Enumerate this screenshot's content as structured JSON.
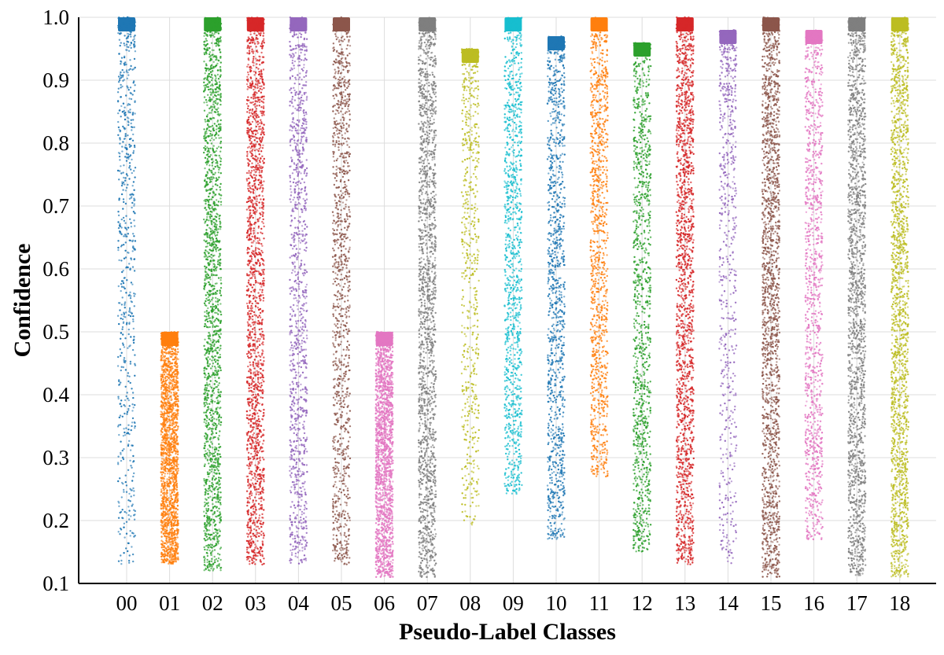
{
  "chart_data": {
    "type": "scatter",
    "title": "",
    "xlabel": "Pseudo-Label Classes",
    "ylabel": "Confidence",
    "categories": [
      "00",
      "01",
      "02",
      "03",
      "04",
      "05",
      "06",
      "07",
      "08",
      "09",
      "10",
      "11",
      "12",
      "13",
      "14",
      "15",
      "16",
      "17",
      "18"
    ],
    "yticks": [
      "0.1",
      "0.2",
      "0.3",
      "0.4",
      "0.5",
      "0.6",
      "0.7",
      "0.8",
      "0.9",
      "1.0"
    ],
    "ylim": [
      0.1,
      1.0
    ],
    "grid": true,
    "legend": "none",
    "series": [
      {
        "category": "00",
        "color": "#1f77b4",
        "min": 0.13,
        "max": 1.0,
        "density": "sparse"
      },
      {
        "category": "01",
        "color": "#ff7f0e",
        "min": 0.13,
        "max": 0.5,
        "density": "dense"
      },
      {
        "category": "02",
        "color": "#2ca02c",
        "min": 0.12,
        "max": 1.0,
        "density": "dense"
      },
      {
        "category": "03",
        "color": "#d62728",
        "min": 0.13,
        "max": 1.0,
        "density": "dense"
      },
      {
        "category": "04",
        "color": "#9467bd",
        "min": 0.13,
        "max": 1.0,
        "density": "medium"
      },
      {
        "category": "05",
        "color": "#8c564b",
        "min": 0.13,
        "max": 1.0,
        "density": "medium"
      },
      {
        "category": "06",
        "color": "#e377c2",
        "min": 0.11,
        "max": 0.5,
        "density": "dense"
      },
      {
        "category": "07",
        "color": "#7f7f7f",
        "min": 0.11,
        "max": 1.0,
        "density": "dense"
      },
      {
        "category": "08",
        "color": "#bcbd22",
        "min": 0.19,
        "max": 0.95,
        "density": "sparse"
      },
      {
        "category": "09",
        "color": "#17becf",
        "min": 0.24,
        "max": 1.0,
        "density": "medium"
      },
      {
        "category": "10",
        "color": "#1f77b4",
        "min": 0.17,
        "max": 0.97,
        "density": "medium"
      },
      {
        "category": "11",
        "color": "#ff7f0e",
        "min": 0.27,
        "max": 1.0,
        "density": "medium"
      },
      {
        "category": "12",
        "color": "#2ca02c",
        "min": 0.15,
        "max": 0.96,
        "density": "medium"
      },
      {
        "category": "13",
        "color": "#d62728",
        "min": 0.13,
        "max": 1.0,
        "density": "dense"
      },
      {
        "category": "14",
        "color": "#9467bd",
        "min": 0.13,
        "max": 0.98,
        "density": "sparse"
      },
      {
        "category": "15",
        "color": "#8c564b",
        "min": 0.11,
        "max": 1.0,
        "density": "dense"
      },
      {
        "category": "16",
        "color": "#e377c2",
        "min": 0.17,
        "max": 0.98,
        "density": "medium"
      },
      {
        "category": "17",
        "color": "#7f7f7f",
        "min": 0.11,
        "max": 1.0,
        "density": "dense"
      },
      {
        "category": "18",
        "color": "#bcbd22",
        "min": 0.11,
        "max": 1.0,
        "density": "dense"
      }
    ]
  }
}
